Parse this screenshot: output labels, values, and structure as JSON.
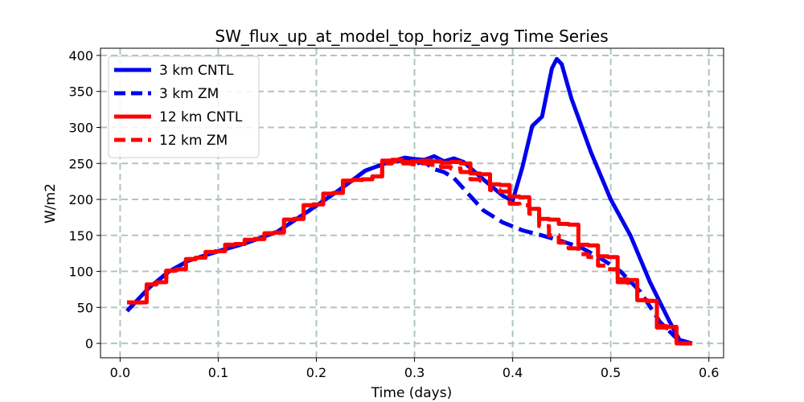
{
  "chart_data": {
    "type": "line",
    "title": "SW_flux_up_at_model_top_horiz_avg Time Series",
    "xlabel": "Time (days)",
    "ylabel": "W/m2",
    "xlim": [
      -0.02,
      0.615
    ],
    "ylim": [
      -20,
      410
    ],
    "xticks": [
      0.0,
      0.1,
      0.2,
      0.3,
      0.4,
      0.5,
      0.6
    ],
    "xtick_labels": [
      "0.0",
      "0.1",
      "0.2",
      "0.3",
      "0.4",
      "0.5",
      "0.6"
    ],
    "yticks": [
      0,
      50,
      100,
      150,
      200,
      250,
      300,
      350,
      400
    ],
    "ytick_labels": [
      "0",
      "50",
      "100",
      "150",
      "200",
      "250",
      "300",
      "350",
      "400"
    ],
    "grid": true,
    "grid_style": "dashed",
    "legend_position": "top-left",
    "series": [
      {
        "name": "3 km CNTL",
        "color": "#0000ee",
        "linestyle": "solid",
        "x": [
          0.007,
          0.03,
          0.05,
          0.07,
          0.1,
          0.13,
          0.16,
          0.19,
          0.22,
          0.25,
          0.27,
          0.29,
          0.3,
          0.31,
          0.32,
          0.33,
          0.34,
          0.35,
          0.37,
          0.39,
          0.4,
          0.41,
          0.42,
          0.43,
          0.44,
          0.445,
          0.45,
          0.46,
          0.48,
          0.5,
          0.52,
          0.54,
          0.56,
          0.57,
          0.583
        ],
        "y": [
          45,
          78,
          100,
          115,
          128,
          140,
          155,
          182,
          210,
          240,
          250,
          258,
          256,
          255,
          260,
          253,
          257,
          252,
          228,
          205,
          198,
          245,
          302,
          315,
          382,
          395,
          388,
          340,
          265,
          200,
          150,
          85,
          30,
          5,
          0
        ]
      },
      {
        "name": "3 km ZM",
        "color": "#0000ee",
        "linestyle": "dashed",
        "x": [
          0.007,
          0.03,
          0.05,
          0.07,
          0.1,
          0.13,
          0.16,
          0.19,
          0.22,
          0.25,
          0.27,
          0.29,
          0.3,
          0.31,
          0.32,
          0.33,
          0.34,
          0.35,
          0.37,
          0.39,
          0.41,
          0.43,
          0.45,
          0.47,
          0.49,
          0.51,
          0.53,
          0.55,
          0.57,
          0.583
        ],
        "y": [
          45,
          78,
          100,
          115,
          128,
          140,
          155,
          182,
          210,
          240,
          250,
          255,
          250,
          252,
          242,
          238,
          230,
          215,
          185,
          168,
          157,
          150,
          142,
          133,
          118,
          100,
          72,
          30,
          3,
          0
        ]
      },
      {
        "name": "12 km CNTL",
        "color": "#ff0000",
        "linestyle": "solid",
        "x": [
          0.007,
          0.017,
          0.017,
          0.027,
          0.027,
          0.037,
          0.037,
          0.047,
          0.047,
          0.057,
          0.057,
          0.067,
          0.067,
          0.077,
          0.077,
          0.087,
          0.087,
          0.097,
          0.097,
          0.107,
          0.107,
          0.117,
          0.117,
          0.127,
          0.127,
          0.137,
          0.137,
          0.147,
          0.147,
          0.157,
          0.157,
          0.167,
          0.167,
          0.177,
          0.177,
          0.187,
          0.187,
          0.197,
          0.197,
          0.207,
          0.207,
          0.217,
          0.217,
          0.227,
          0.227,
          0.237,
          0.237,
          0.247,
          0.247,
          0.257,
          0.257,
          0.267,
          0.267,
          0.277,
          0.277,
          0.287,
          0.287,
          0.297,
          0.297,
          0.307,
          0.307,
          0.317,
          0.317,
          0.327,
          0.327,
          0.337,
          0.337,
          0.347,
          0.347,
          0.357,
          0.357,
          0.367,
          0.367,
          0.377,
          0.377,
          0.387,
          0.387,
          0.397,
          0.397,
          0.407,
          0.407,
          0.417,
          0.417,
          0.427,
          0.427,
          0.437,
          0.437,
          0.447,
          0.447,
          0.457,
          0.457,
          0.467,
          0.467,
          0.477,
          0.477,
          0.487,
          0.487,
          0.497,
          0.497,
          0.507,
          0.507,
          0.517,
          0.517,
          0.527,
          0.527,
          0.537,
          0.537,
          0.547,
          0.547,
          0.557,
          0.557,
          0.567,
          0.567,
          0.583
        ],
        "y": [
          57,
          57,
          57,
          57,
          82,
          82,
          85,
          85,
          101,
          101,
          103,
          103,
          117,
          117,
          119,
          119,
          127,
          127,
          128,
          128,
          137,
          137,
          138,
          138,
          144,
          144,
          145,
          145,
          153,
          153,
          154,
          154,
          172,
          172,
          173,
          173,
          192,
          192,
          193,
          193,
          208,
          208,
          209,
          209,
          226,
          226,
          227,
          227,
          228,
          228,
          232,
          232,
          254,
          254,
          255,
          255,
          252,
          252,
          253,
          253,
          254,
          254,
          253,
          253,
          251,
          251,
          252,
          252,
          250,
          250,
          236,
          236,
          235,
          235,
          221,
          221,
          220,
          220,
          204,
          204,
          203,
          203,
          187,
          187,
          173,
          173,
          172,
          172,
          166,
          166,
          165,
          165,
          137,
          137,
          136,
          136,
          121,
          121,
          120,
          120,
          89,
          89,
          88,
          88,
          60,
          60,
          59,
          59,
          24,
          24,
          23,
          23,
          0,
          0
        ]
      },
      {
        "name": "12 km ZM",
        "color": "#ff0000",
        "linestyle": "dashed",
        "x": [
          0.007,
          0.017,
          0.017,
          0.027,
          0.027,
          0.037,
          0.037,
          0.047,
          0.047,
          0.057,
          0.057,
          0.067,
          0.067,
          0.077,
          0.077,
          0.087,
          0.087,
          0.097,
          0.097,
          0.107,
          0.107,
          0.117,
          0.117,
          0.127,
          0.127,
          0.137,
          0.137,
          0.147,
          0.147,
          0.157,
          0.157,
          0.167,
          0.167,
          0.177,
          0.177,
          0.187,
          0.187,
          0.197,
          0.197,
          0.207,
          0.207,
          0.217,
          0.217,
          0.227,
          0.227,
          0.237,
          0.237,
          0.247,
          0.247,
          0.257,
          0.257,
          0.267,
          0.267,
          0.277,
          0.277,
          0.287,
          0.287,
          0.297,
          0.297,
          0.307,
          0.307,
          0.317,
          0.317,
          0.327,
          0.327,
          0.337,
          0.337,
          0.347,
          0.347,
          0.357,
          0.357,
          0.367,
          0.367,
          0.377,
          0.377,
          0.387,
          0.387,
          0.397,
          0.397,
          0.407,
          0.407,
          0.417,
          0.417,
          0.427,
          0.427,
          0.437,
          0.437,
          0.447,
          0.447,
          0.457,
          0.457,
          0.467,
          0.467,
          0.477,
          0.477,
          0.487,
          0.487,
          0.497,
          0.497,
          0.507,
          0.507,
          0.517,
          0.517,
          0.527,
          0.527,
          0.537,
          0.537,
          0.547,
          0.547,
          0.557,
          0.557,
          0.567,
          0.567,
          0.583
        ],
        "y": [
          57,
          57,
          57,
          57,
          82,
          82,
          85,
          85,
          101,
          101,
          103,
          103,
          117,
          117,
          119,
          119,
          127,
          127,
          128,
          128,
          137,
          137,
          138,
          138,
          144,
          144,
          145,
          145,
          153,
          153,
          154,
          154,
          172,
          172,
          173,
          173,
          192,
          192,
          193,
          193,
          208,
          208,
          209,
          209,
          226,
          226,
          227,
          227,
          228,
          228,
          232,
          232,
          250,
          250,
          253,
          253,
          250,
          250,
          249,
          249,
          250,
          250,
          248,
          248,
          245,
          245,
          243,
          243,
          238,
          238,
          228,
          228,
          226,
          226,
          213,
          213,
          211,
          211,
          194,
          194,
          192,
          192,
          180,
          180,
          163,
          163,
          150,
          150,
          140,
          140,
          132,
          132,
          124,
          124,
          120,
          120,
          108,
          108,
          103,
          103,
          85,
          85,
          84,
          84,
          60,
          60,
          59,
          59,
          22,
          22,
          21,
          21,
          0,
          0
        ]
      }
    ]
  }
}
